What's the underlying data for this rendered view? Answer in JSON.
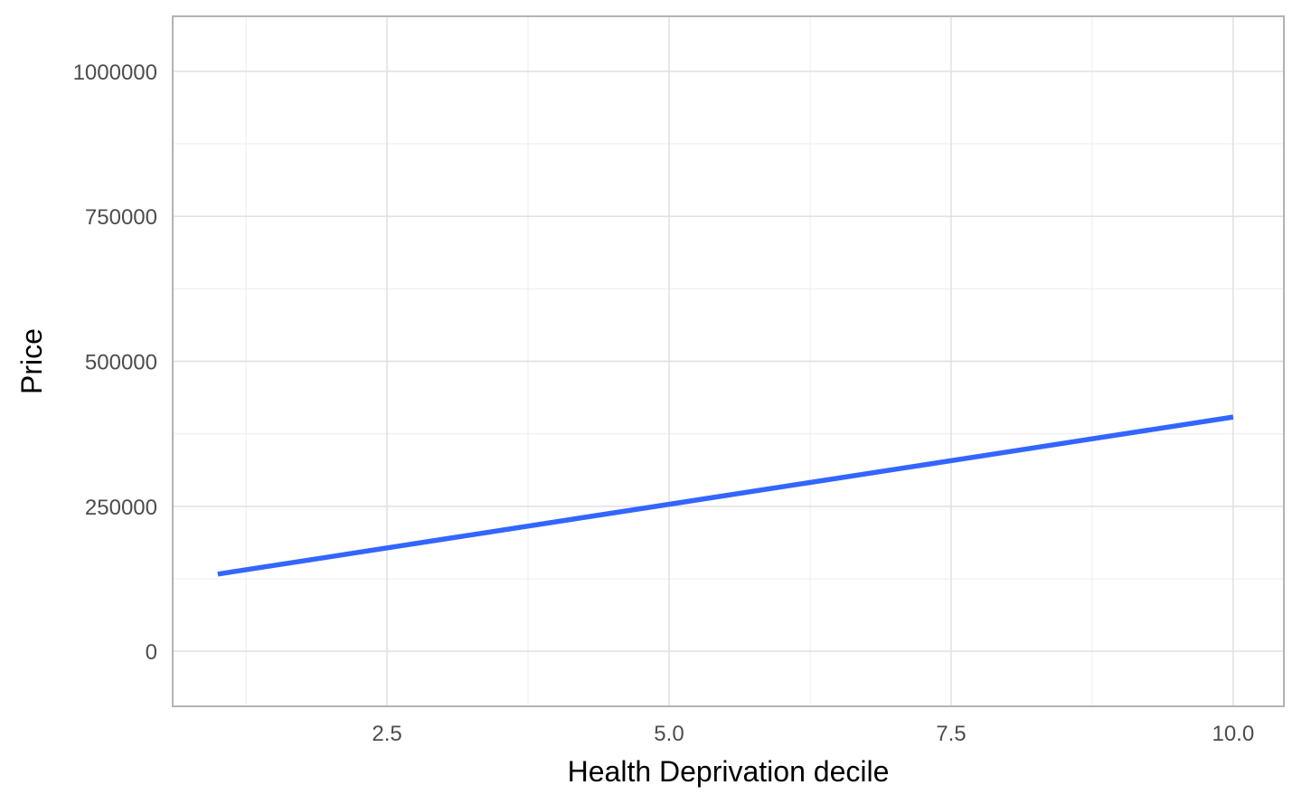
{
  "chart_data": {
    "type": "line",
    "xlabel": "Health Deprivation decile",
    "ylabel": "Price",
    "xlim": [
      0.6,
      10.45
    ],
    "ylim": [
      -95000,
      1095000
    ],
    "x_ticks": [
      2.5,
      5.0,
      7.5,
      10.0
    ],
    "x_tick_labels": [
      "2.5",
      "5.0",
      "7.5",
      "10.0"
    ],
    "y_ticks": [
      0,
      250000,
      500000,
      750000,
      1000000
    ],
    "y_tick_labels": [
      "0",
      "250000",
      "500000",
      "750000",
      "1000000"
    ],
    "grid": true,
    "series": [
      {
        "x": [
          1,
          10
        ],
        "values": [
          133000,
          404000
        ],
        "color": "#3366ff"
      }
    ]
  }
}
